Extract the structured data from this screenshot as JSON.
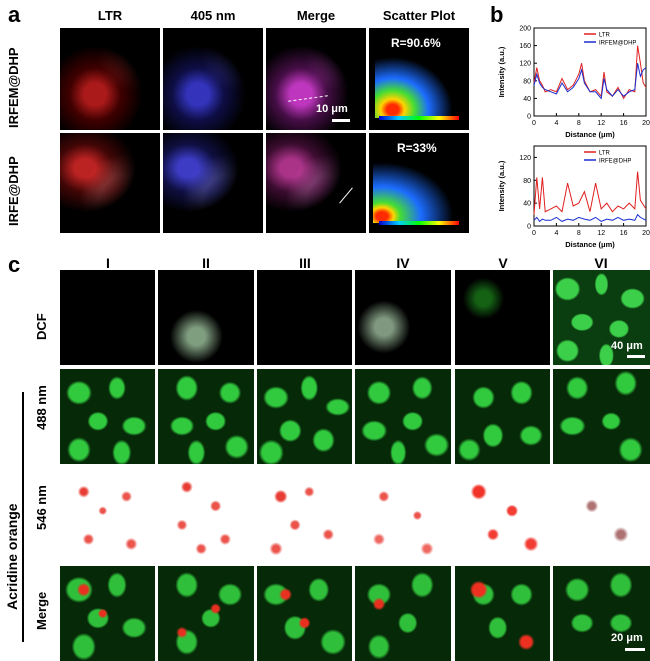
{
  "panel_a": {
    "letter": "a",
    "columns": [
      "LTR",
      "405 nm",
      "Merge",
      "Scatter Plot"
    ],
    "rows": [
      "IRFEM@DHP",
      "IRFE@DHP"
    ],
    "r_values": [
      "R=90.6%",
      "R=33%"
    ],
    "scale_bar": "10 μm"
  },
  "panel_b": {
    "letter": "b"
  },
  "panel_c": {
    "letter": "c",
    "columns": [
      "I",
      "II",
      "III",
      "IV",
      "V",
      "VI"
    ],
    "row_dcf": "DCF",
    "group_label": "Acridine orange",
    "rows": [
      "488 nm",
      "546 nm",
      "Merge"
    ],
    "scale_top": "40 μm",
    "scale_bottom": "20 μm"
  },
  "chart_data": [
    {
      "type": "line",
      "xlabel": "Distance (μm)",
      "ylabel": "Intensity (a.u.)",
      "xlim": [
        0,
        20
      ],
      "ylim": [
        0,
        200
      ],
      "xticks": [
        0,
        4,
        8,
        12,
        16,
        20
      ],
      "yticks": [
        0,
        40,
        80,
        120,
        160,
        200
      ],
      "colors": [
        "#e02020",
        "#1a2fd0"
      ],
      "legend": [
        "LTR",
        "IRFEM@DHP"
      ],
      "x": [
        0,
        0.5,
        1,
        1.5,
        2,
        3,
        4,
        5,
        6,
        7,
        8,
        8.5,
        9,
        10,
        11,
        12,
        12.5,
        13,
        14,
        15,
        16,
        17,
        18,
        18.5,
        19,
        19.5,
        20
      ],
      "series": [
        {
          "name": "LTR",
          "values": [
            75,
            110,
            80,
            70,
            55,
            60,
            55,
            85,
            60,
            70,
            95,
            120,
            80,
            55,
            60,
            45,
            100,
            55,
            45,
            65,
            40,
            60,
            55,
            160,
            120,
            75,
            65
          ]
        },
        {
          "name": "IRFEM@DHP",
          "values": [
            70,
            95,
            75,
            65,
            60,
            55,
            50,
            75,
            55,
            65,
            85,
            105,
            75,
            55,
            55,
            40,
            85,
            60,
            45,
            60,
            45,
            55,
            60,
            120,
            90,
            105,
            110
          ]
        }
      ]
    },
    {
      "type": "line",
      "xlabel": "Distance (μm)",
      "ylabel": "Intensity (a.u.)",
      "xlim": [
        0,
        20
      ],
      "ylim": [
        0,
        140
      ],
      "xticks": [
        0,
        4,
        8,
        12,
        16,
        20
      ],
      "yticks": [
        0,
        40,
        80,
        120
      ],
      "colors": [
        "#e02020",
        "#1a2fd0"
      ],
      "legend": [
        "LTR",
        "IRFE@DHP"
      ],
      "x": [
        0,
        0.5,
        1,
        1.5,
        2,
        3,
        4,
        5,
        6,
        7,
        8,
        9,
        10,
        11,
        12,
        13,
        14,
        15,
        16,
        17,
        18,
        18.5,
        19,
        20
      ],
      "series": [
        {
          "name": "LTR",
          "values": [
            20,
            85,
            30,
            85,
            25,
            30,
            35,
            25,
            75,
            35,
            40,
            60,
            25,
            75,
            30,
            40,
            25,
            35,
            30,
            40,
            30,
            95,
            45,
            30
          ]
        },
        {
          "name": "IRFE@DHP",
          "values": [
            10,
            15,
            8,
            12,
            10,
            10,
            15,
            8,
            12,
            10,
            15,
            12,
            10,
            15,
            8,
            12,
            10,
            15,
            10,
            12,
            10,
            20,
            15,
            10
          ]
        }
      ]
    }
  ]
}
